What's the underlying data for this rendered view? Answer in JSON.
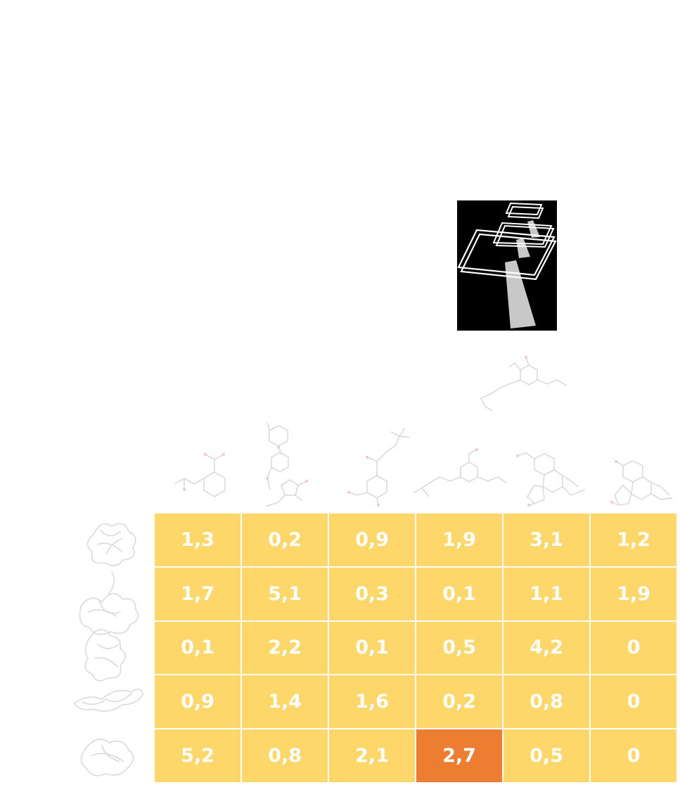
{
  "colors": {
    "cell_default": "#FDD76A",
    "cell_highlight": "#ED7D31",
    "cell_text": "#FFFFFF",
    "grid_line": "#FFFFFF",
    "icon_background": "#000000",
    "icon_stroke": "#FFFFFF",
    "icon_beam": "#C8C8C8",
    "faint_structure": "#D8D8D8"
  },
  "icons": {
    "stacked_planes": "layered-planes-with-beam-icon",
    "column_headers": "molecule-structure-icon",
    "row_headers": "protein-structure-icon"
  },
  "columns": [
    {
      "molecule": "aspirin-like"
    },
    {
      "molecule": "sulfonamide-like"
    },
    {
      "molecule": "salbutamol-like"
    },
    {
      "molecule": "chain-molecule"
    },
    {
      "molecule": "codeine-like"
    },
    {
      "molecule": "morphine-like"
    }
  ],
  "extra_molecule": {
    "molecule": "chain-molecule-upper"
  },
  "rows": [
    {
      "protein": "protein-1",
      "values": [
        "1,3",
        "0,2",
        "0,9",
        "1,9",
        "3,1",
        "1,2"
      ]
    },
    {
      "protein": "protein-2",
      "values": [
        "1,7",
        "5,1",
        "0,3",
        "0,1",
        "1,1",
        "1,9"
      ]
    },
    {
      "protein": "protein-3",
      "values": [
        "0,1",
        "2,2",
        "0,1",
        "0,5",
        "4,2",
        "0"
      ]
    },
    {
      "protein": "protein-4",
      "values": [
        "0,9",
        "1,4",
        "1,6",
        "0,2",
        "0,8",
        "0"
      ]
    },
    {
      "protein": "protein-5",
      "values": [
        "5,2",
        "0,8",
        "2,1",
        "2,7",
        "0,5",
        "0"
      ]
    }
  ],
  "highlight": {
    "row": 4,
    "col": 3
  }
}
